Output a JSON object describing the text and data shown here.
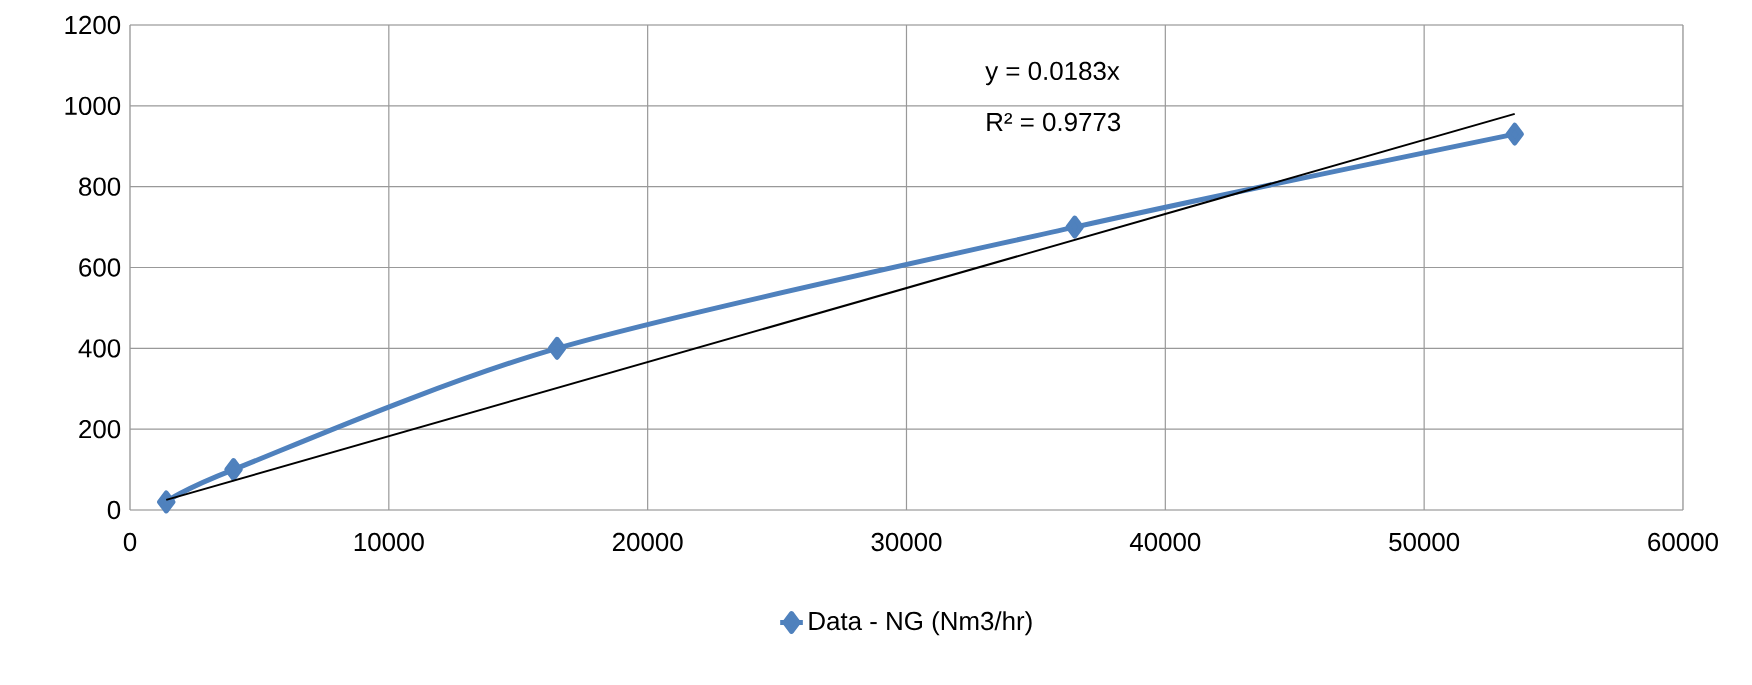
{
  "chart_data": {
    "type": "line",
    "x": [
      1400,
      4000,
      16500,
      36500,
      53500
    ],
    "series": [
      {
        "name": "Data - NG (Nm3/hr)",
        "color": "#4f81bd",
        "values": [
          20,
          100,
          400,
          700,
          930
        ],
        "marker": "diamond",
        "line_style": "solid"
      },
      {
        "type": "line",
        "x": [
          1400,
          53500
        ],
        "values": [
          25,
          980
        ],
        "color": "#000000",
        "marker": "none",
        "line_style": "solid"
      }
    ],
    "xlim": [
      0,
      60000
    ],
    "xticks": [
      0,
      10000,
      20000,
      30000,
      40000,
      50000,
      60000
    ],
    "ylim": [
      0,
      1200
    ],
    "yticks": [
      0,
      200,
      400,
      600,
      800,
      1000,
      1200
    ],
    "grid": true,
    "legend": "bottom",
    "annotations": [
      "y = 0.0183x",
      "R² = 0.9773"
    ]
  }
}
